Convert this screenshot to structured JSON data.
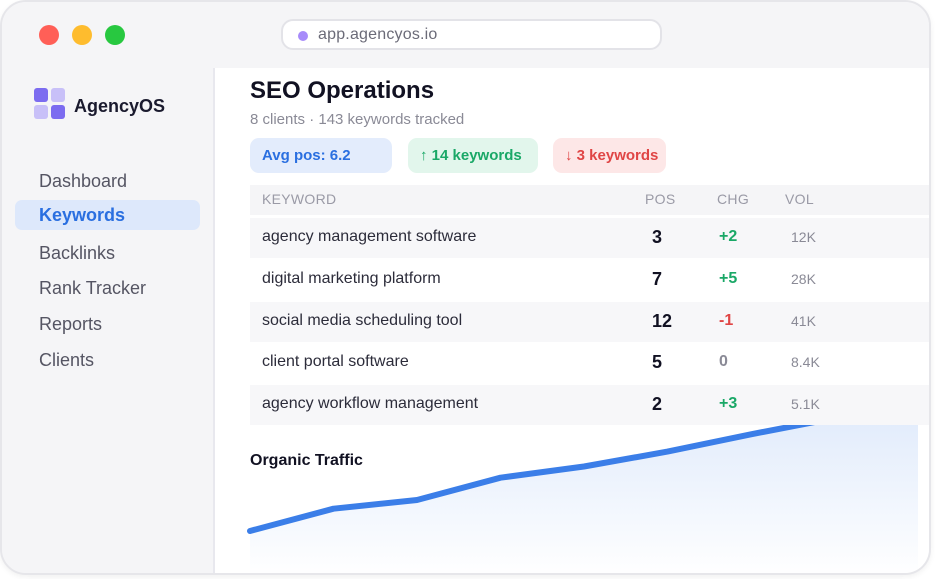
{
  "browser": {
    "url": "app.agencyos.io"
  },
  "sidebar": {
    "brand": "AgencyOS",
    "items": [
      {
        "label": "Dashboard",
        "active": false
      },
      {
        "label": "Keywords",
        "active": true
      },
      {
        "label": "Backlinks",
        "active": false
      },
      {
        "label": "Rank Tracker",
        "active": false
      },
      {
        "label": "Reports",
        "active": false
      },
      {
        "label": "Clients",
        "active": false
      }
    ]
  },
  "header": {
    "title": "SEO Operations",
    "subtitle": "8 clients · 143 keywords tracked"
  },
  "badges": {
    "avg": "Avg pos: 6.2",
    "up": "↑ 14 keywords",
    "down": "↓ 3 keywords"
  },
  "table": {
    "columns": [
      "KEYWORD",
      "POS",
      "CHG",
      "VOL"
    ],
    "rows": [
      {
        "keyword": "agency management software",
        "pos": "3",
        "chg": "+2",
        "vol": "12K"
      },
      {
        "keyword": "digital marketing platform",
        "pos": "7",
        "chg": "+5",
        "vol": "28K"
      },
      {
        "keyword": "social media scheduling tool",
        "pos": "12",
        "chg": "-1",
        "vol": "41K"
      },
      {
        "keyword": "client portal software",
        "pos": "5",
        "chg": "0",
        "vol": "8.4K"
      },
      {
        "keyword": "agency workflow management",
        "pos": "2",
        "chg": "+3",
        "vol": "5.1K"
      }
    ]
  },
  "traffic": {
    "title": "Organic Traffic",
    "values": [
      0,
      0.18,
      0.25,
      0.43,
      0.52,
      0.64,
      0.78,
      0.91,
      1.0
    ],
    "color": "#3b7ee8"
  },
  "colors": {
    "accent": "#2a6fe0",
    "positive": "#1aa867",
    "negative": "#e04545",
    "neutral": "#8a8a96"
  }
}
